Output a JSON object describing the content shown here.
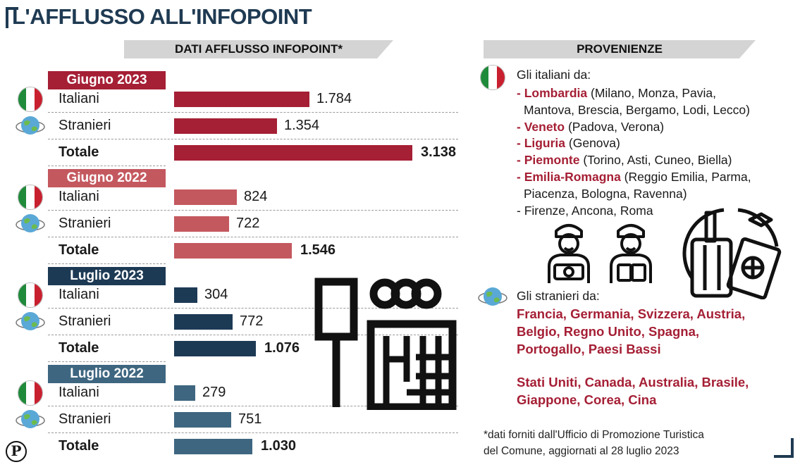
{
  "title": "L'AFFLUSSO ALL'INFOPOINT",
  "left_header": "DATI AFFLUSSO INFOPOINT*",
  "right_header": "PROVENIENZE",
  "colors": {
    "giugno_2023": "#a51f35",
    "giugno_2022": "#c4585f",
    "luglio_2023": "#1d3a55",
    "luglio_2022": "#3e6680",
    "italy_green": "#1f8a3a",
    "italy_red": "#c8202f"
  },
  "chart_data": {
    "type": "bar",
    "orientation": "horizontal",
    "groups": [
      {
        "period": "Giugno 2023",
        "rows": [
          {
            "label": "Italiani",
            "value": 1784,
            "display": "1.784"
          },
          {
            "label": "Stranieri",
            "value": 1354,
            "display": "1.354"
          },
          {
            "label": "Totale",
            "value": 3138,
            "display": "3.138"
          }
        ]
      },
      {
        "period": "Giugno 2022",
        "rows": [
          {
            "label": "Italiani",
            "value": 824,
            "display": "824"
          },
          {
            "label": "Stranieri",
            "value": 722,
            "display": "722"
          },
          {
            "label": "Totale",
            "value": 1546,
            "display": "1.546"
          }
        ]
      },
      {
        "period": "Luglio 2023",
        "rows": [
          {
            "label": "Italiani",
            "value": 304,
            "display": "304"
          },
          {
            "label": "Stranieri",
            "value": 772,
            "display": "772"
          },
          {
            "label": "Totale",
            "value": 1076,
            "display": "1.076"
          }
        ]
      },
      {
        "period": "Luglio 2022",
        "rows": [
          {
            "label": "Italiani",
            "value": 279,
            "display": "279"
          },
          {
            "label": "Stranieri",
            "value": 751,
            "display": "751"
          },
          {
            "label": "Totale",
            "value": 1030,
            "display": "1.030"
          }
        ]
      }
    ]
  },
  "provenienze": {
    "italiani_intro": "Gli italiani da:",
    "regions": [
      {
        "name": "- Lombardia",
        "detail": " (Milano, Monza, Pavia,",
        "detail2": "Mantova, Brescia, Bergamo, Lodi, Lecco)"
      },
      {
        "name": "- Veneto",
        "detail": " (Padova, Verona)"
      },
      {
        "name": "- Liguria",
        "detail": " (Genova)"
      },
      {
        "name": "- Piemonte",
        "detail": " (Torino, Asti, Cuneo, Biella)"
      },
      {
        "name": "- Emilia-Romagna",
        "detail": " (Reggio Emilia, Parma,",
        "detail2": "Piacenza, Bologna, Ravenna)"
      }
    ],
    "other_cities": "- Firenze, Ancona, Roma",
    "stranieri_intro": "Gli stranieri da:",
    "stranieri_lines": [
      "Francia, Germania, Svizzera, Austria,",
      "Belgio, Regno Unito, Spagna,",
      "Portogallo, Paesi Bassi"
    ],
    "stranieri_lines_2": [
      "Stati Uniti, Canada, Australia, Brasile,",
      "Giappone, Corea, Cina"
    ]
  },
  "footnote": [
    "*dati forniti dall'Ufficio di Promozione Turistica",
    "del Comune, aggiornati al 28 luglio 2023"
  ],
  "logo_letter": "P",
  "icons": [
    "italy-flag-icon",
    "globe-icon",
    "tourists-icon",
    "luggage-passport-icon",
    "infopoint-icon"
  ]
}
